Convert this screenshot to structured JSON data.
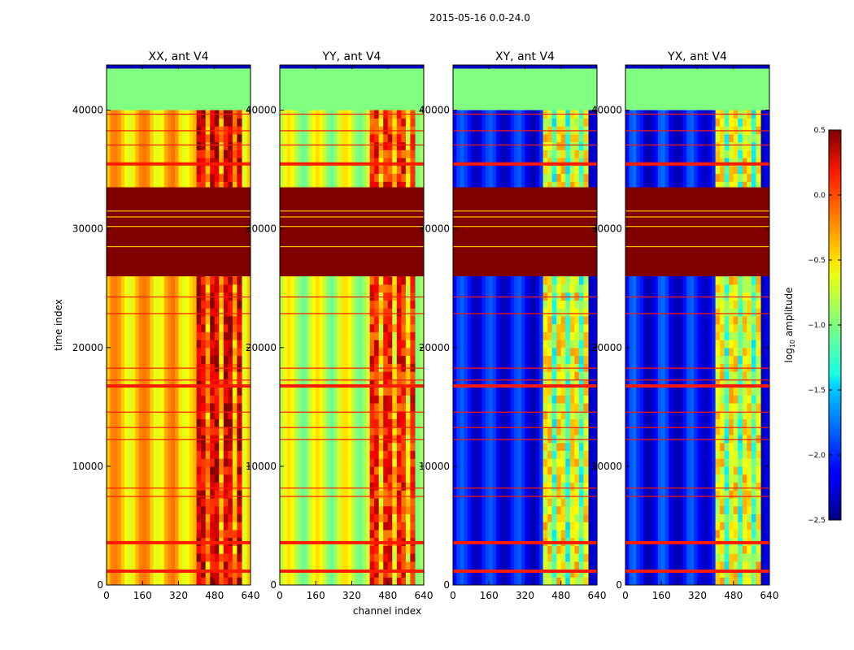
{
  "figure": {
    "suptitle": "2015-05-16 0.0-24.0"
  },
  "chart_data": {
    "type": "heatmap",
    "xlabel": "channel index",
    "ylabel": "time index",
    "xlim": [
      0,
      640
    ],
    "ylim": [
      0,
      43800
    ],
    "x_ticks": [
      0,
      160,
      320,
      480,
      640
    ],
    "y_ticks": [
      0,
      10000,
      20000,
      30000,
      40000
    ],
    "colormap": "jet",
    "colorbar": {
      "label_main": "log",
      "label_sub": "10",
      "label_tail": " amplitude",
      "range": [
        -2.5,
        0.5
      ],
      "ticks": [
        "0.5",
        "0.0",
        "−0.5",
        "−1.0",
        "−1.5",
        "−2.0",
        "−2.5"
      ],
      "tick_values": [
        0.5,
        0.0,
        -0.5,
        -1.0,
        -1.5,
        -2.0,
        -2.5
      ]
    },
    "panels": [
      {
        "title": "XX, ant V4",
        "base_level": -0.45,
        "rfi_level": 0.25
      },
      {
        "title": "YY, ant V4",
        "base_level": -0.8,
        "rfi_level": 0.05
      },
      {
        "title": "XY, ant V4",
        "base_level": -2.1,
        "rfi_level": -0.6
      },
      {
        "title": "YX, ant V4",
        "base_level": -2.1,
        "rfi_level": -0.6
      }
    ],
    "flagged_time_ranges": [
      [
        26000,
        33500
      ]
    ],
    "empty_time_ranges": [
      [
        40000,
        43500
      ]
    ],
    "rfi_channel_range": [
      400,
      600
    ]
  }
}
